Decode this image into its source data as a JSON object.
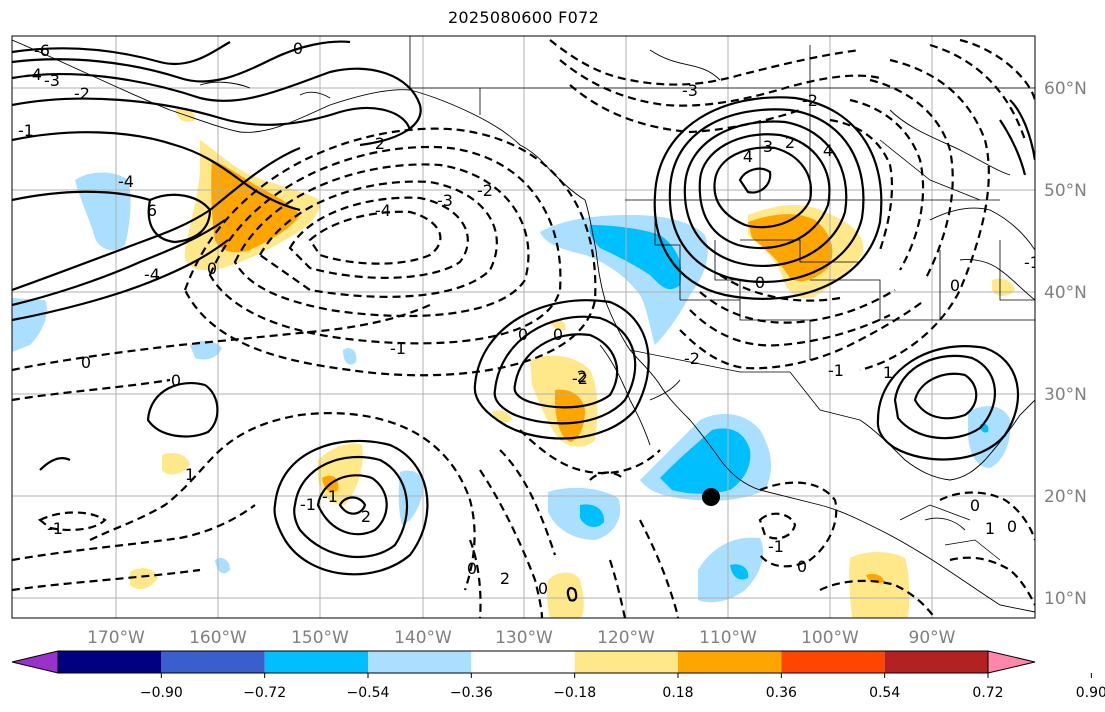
{
  "title": "2025080600 F072",
  "lon_labels": [
    "170°W",
    "160°W",
    "150°W",
    "140°W",
    "130°W",
    "120°W",
    "110°W",
    "100°W",
    "90°W"
  ],
  "lat_labels": [
    "60°N",
    "50°N",
    "40°N",
    "30°N",
    "20°N",
    "10°N"
  ],
  "colorbar": {
    "ticks": [
      "−0.90",
      "−0.72",
      "−0.54",
      "−0.36",
      "−0.18",
      "0.18",
      "0.36",
      "0.54",
      "0.72",
      "0.90"
    ],
    "colors": [
      "#9932cc",
      "#000080",
      "#3a5fcd",
      "#00bfff",
      "#aadfff",
      "#ffffff",
      "#ffe88a",
      "#ffa500",
      "#ff4500",
      "#b22222",
      "#ff88aa"
    ]
  },
  "contour_labels": [
    "-6",
    "-4",
    "-3",
    "-2",
    "0",
    "-1",
    "-4",
    "0",
    "2",
    "-4",
    "-3",
    "-2",
    "-3",
    "-2",
    "4",
    "3",
    "2",
    "4",
    "0",
    "6",
    "-4",
    "0",
    "0",
    "1",
    "-1",
    "0",
    "0",
    "-2",
    "-1",
    "1",
    "2",
    "-2",
    "-1",
    "-1",
    "-1",
    "2",
    "0",
    "2",
    "0",
    "0",
    "0",
    "0",
    "-1",
    "0",
    "-1",
    "1"
  ],
  "marker": {
    "label": "point",
    "color": "#000000"
  }
}
